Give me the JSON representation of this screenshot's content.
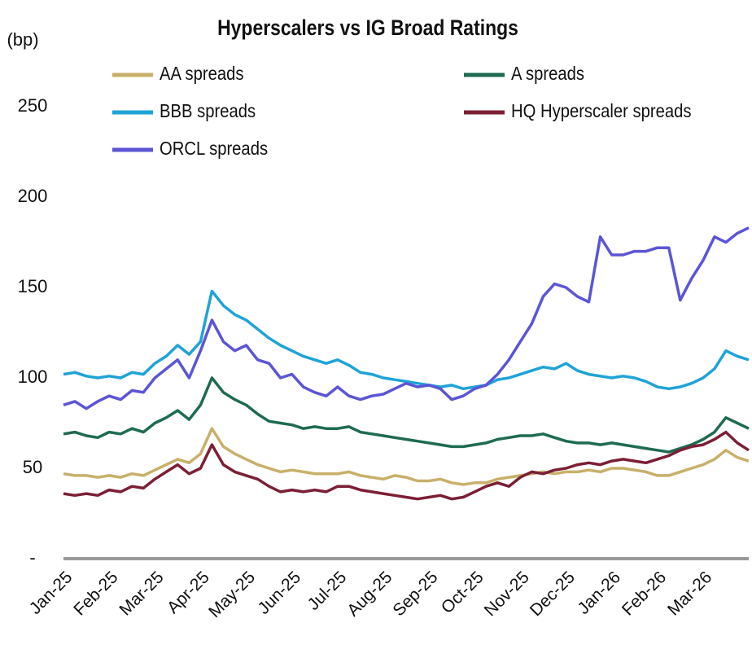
{
  "chart_data": {
    "type": "line",
    "title": "Hyperscalers vs IG Broad Ratings",
    "y_label": "(bp)",
    "categories": [
      "Jan-25",
      null,
      null,
      null,
      "Feb-25",
      null,
      null,
      null,
      "Mar-25",
      null,
      null,
      null,
      "Apr-25",
      null,
      null,
      null,
      "May-25",
      null,
      null,
      null,
      "Jun-25",
      null,
      null,
      null,
      "Jul-25",
      null,
      null,
      null,
      "Aug-25",
      null,
      null,
      null,
      "Sep-25",
      null,
      null,
      null,
      "Oct-25",
      null,
      null,
      null,
      "Nov-25",
      null,
      null,
      null,
      "Dec-25",
      null,
      null,
      null,
      "Jan-26",
      null,
      null,
      null,
      "Feb-26",
      null,
      null,
      null,
      "Mar-26",
      null,
      null,
      null,
      null
    ],
    "ylim": [
      0,
      250
    ],
    "yticks": [
      {
        "value": 0,
        "label": "-"
      },
      50,
      100,
      150,
      200,
      250
    ],
    "grid": false,
    "legend": "top",
    "series": [
      {
        "name": "AA spreads",
        "color": "#c8b06a",
        "values": [
          47,
          46,
          46,
          45,
          46,
          45,
          47,
          46,
          49,
          52,
          55,
          53,
          58,
          72,
          62,
          58,
          55,
          52,
          50,
          48,
          49,
          48,
          47,
          47,
          47,
          48,
          46,
          45,
          44,
          46,
          45,
          43,
          43,
          44,
          42,
          41,
          42,
          42,
          44,
          45,
          46,
          47,
          48,
          47,
          48,
          48,
          49,
          48,
          50,
          50,
          49,
          48,
          46,
          46,
          48,
          50,
          52,
          55,
          60,
          56,
          54
        ]
      },
      {
        "name": "A spreads",
        "color": "#1e6b52",
        "values": [
          69,
          70,
          68,
          67,
          70,
          69,
          72,
          70,
          75,
          78,
          82,
          77,
          85,
          100,
          92,
          88,
          85,
          80,
          76,
          75,
          74,
          72,
          73,
          72,
          72,
          73,
          70,
          69,
          68,
          67,
          66,
          65,
          64,
          63,
          62,
          62,
          63,
          64,
          66,
          67,
          68,
          68,
          69,
          67,
          65,
          64,
          64,
          63,
          64,
          63,
          62,
          61,
          60,
          59,
          61,
          63,
          66,
          70,
          78,
          75,
          72
        ]
      },
      {
        "name": "BBB spreads",
        "color": "#1fa3d6",
        "values": [
          102,
          103,
          101,
          100,
          101,
          100,
          103,
          102,
          108,
          112,
          118,
          113,
          120,
          148,
          140,
          135,
          132,
          127,
          122,
          118,
          115,
          112,
          110,
          108,
          110,
          107,
          103,
          102,
          100,
          99,
          98,
          97,
          96,
          95,
          96,
          94,
          95,
          96,
          99,
          100,
          102,
          104,
          106,
          105,
          108,
          104,
          102,
          101,
          100,
          101,
          100,
          98,
          95,
          94,
          95,
          97,
          100,
          105,
          115,
          112,
          110
        ]
      },
      {
        "name": "HQ Hyperscaler spreads",
        "color": "#7b1f35",
        "values": [
          36,
          35,
          36,
          35,
          38,
          37,
          40,
          39,
          44,
          48,
          52,
          47,
          50,
          63,
          52,
          48,
          46,
          44,
          40,
          37,
          38,
          37,
          38,
          37,
          40,
          40,
          38,
          37,
          36,
          35,
          34,
          33,
          34,
          35,
          33,
          34,
          37,
          40,
          42,
          40,
          45,
          48,
          47,
          49,
          50,
          52,
          53,
          52,
          54,
          55,
          54,
          53,
          55,
          57,
          60,
          62,
          63,
          66,
          70,
          64,
          60
        ]
      },
      {
        "name": "ORCL spreads",
        "color": "#5b55d6",
        "values": [
          85,
          87,
          83,
          87,
          90,
          88,
          93,
          92,
          100,
          105,
          110,
          100,
          115,
          132,
          120,
          115,
          118,
          110,
          108,
          100,
          102,
          95,
          92,
          90,
          95,
          90,
          88,
          90,
          91,
          94,
          97,
          95,
          96,
          94,
          88,
          90,
          94,
          96,
          102,
          110,
          120,
          130,
          145,
          152,
          150,
          145,
          142,
          178,
          168,
          168,
          170,
          170,
          172,
          172,
          143,
          155,
          165,
          178,
          175,
          180,
          183
        ]
      }
    ]
  }
}
